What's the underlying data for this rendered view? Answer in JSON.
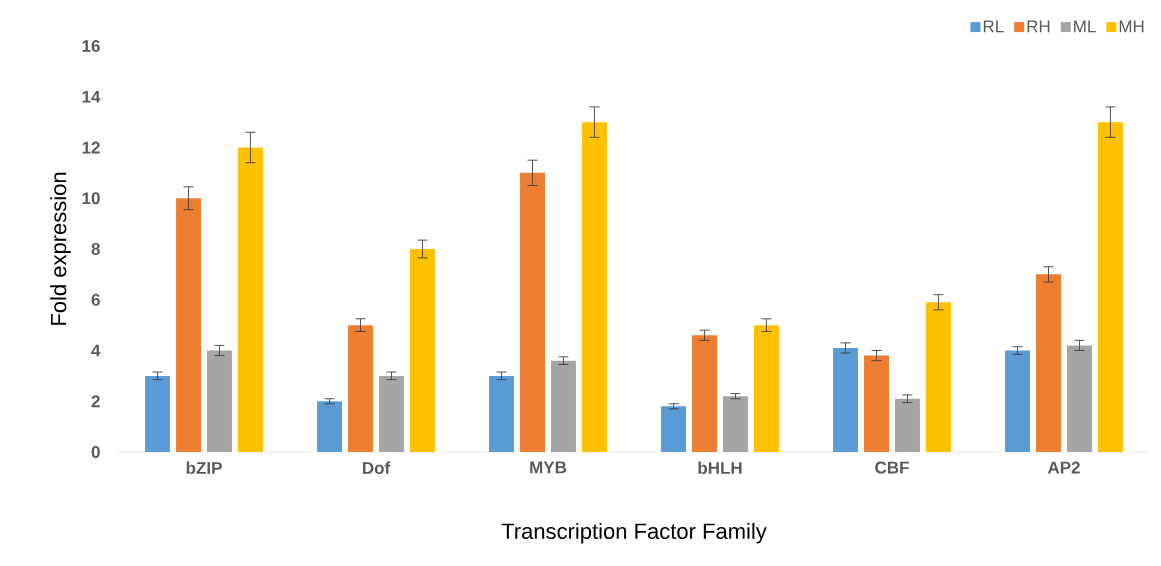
{
  "chart_data": {
    "type": "bar",
    "xlabel": "Transcription Factor Family",
    "ylabel": "Fold expression",
    "categories": [
      "bZIP",
      "Dof",
      "MYB",
      "bHLH",
      "CBF",
      "AP2"
    ],
    "series": [
      {
        "name": "RL",
        "color": "#5b9bd5",
        "values": [
          3,
          2,
          3,
          1.8,
          4.1,
          4
        ],
        "errors": [
          0.15,
          0.1,
          0.15,
          0.1,
          0.2,
          0.15
        ]
      },
      {
        "name": "RH",
        "color": "#ed7d31",
        "values": [
          10,
          5,
          11,
          4.6,
          3.8,
          7
        ],
        "errors": [
          0.45,
          0.25,
          0.5,
          0.2,
          0.2,
          0.3
        ]
      },
      {
        "name": "ML",
        "color": "#a5a5a5",
        "values": [
          4,
          3,
          3.6,
          2.2,
          2.1,
          4.2
        ],
        "errors": [
          0.2,
          0.15,
          0.15,
          0.1,
          0.15,
          0.2
        ]
      },
      {
        "name": "MH",
        "color": "#ffc000",
        "values": [
          12,
          8,
          13,
          5,
          5.9,
          13
        ],
        "errors": [
          0.6,
          0.35,
          0.6,
          0.25,
          0.3,
          0.6
        ]
      }
    ],
    "ylim": [
      0,
      16
    ],
    "yticks": [
      0,
      2,
      4,
      6,
      8,
      10,
      12,
      14,
      16
    ],
    "grid": false,
    "legend": "top right"
  }
}
